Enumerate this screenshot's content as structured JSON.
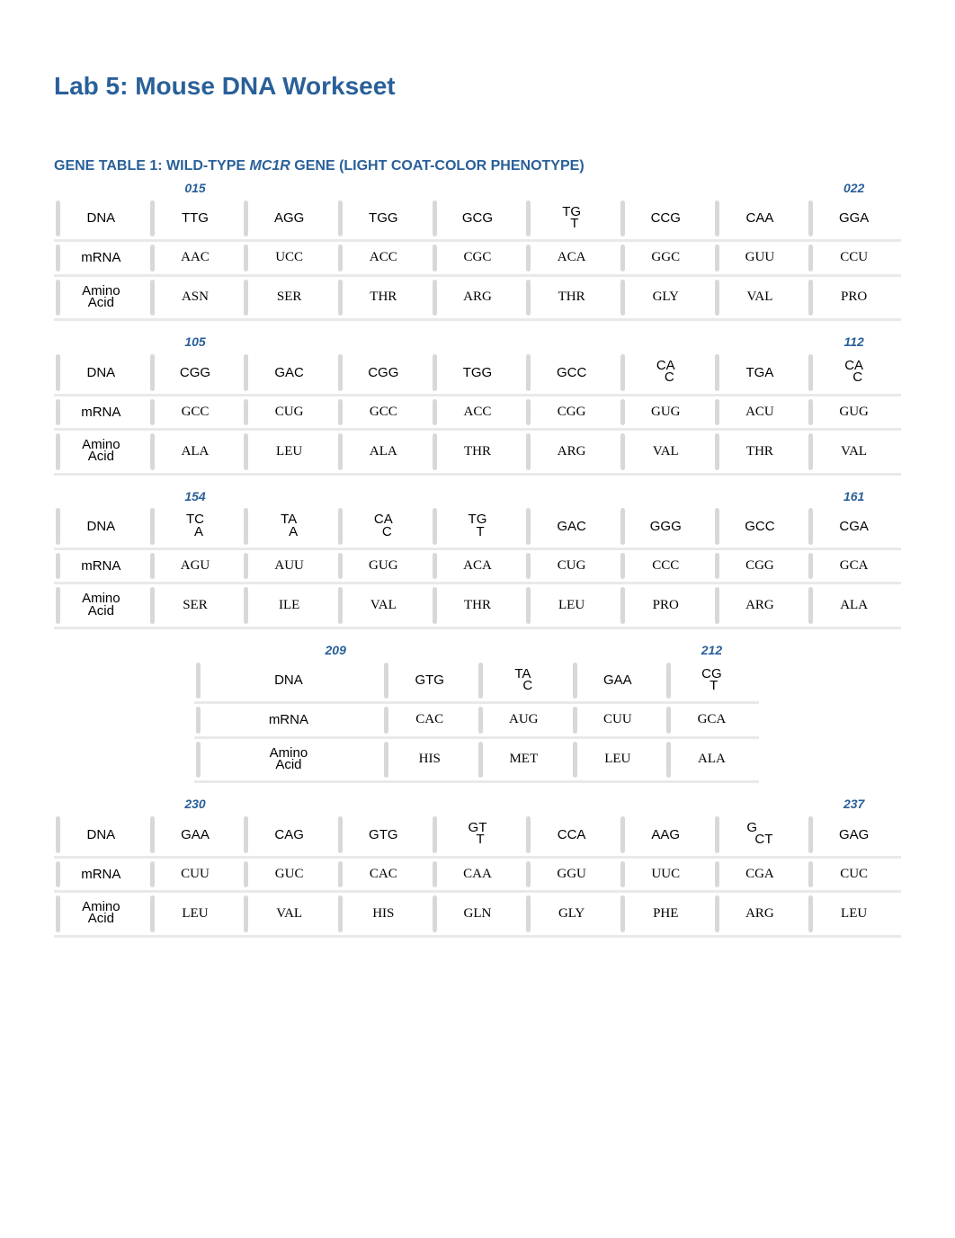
{
  "title": "Lab 5: Mouse DNA Workseet",
  "section_heading_pre": "GENE TABLE 1: WILD-TYPE ",
  "section_heading_gene": "MC1R",
  "section_heading_post": " GENE (LIGHT COAT-COLOR PHENOTYPE)",
  "row_labels": {
    "dna": "DNA",
    "mrna": "mRNA",
    "aa": "Amino\nAcid"
  },
  "colors": {
    "heading": "#2a6099",
    "row_divider": "#e9e9e9",
    "tick": "#d8d8d8",
    "background": "#ffffff"
  },
  "blocks": [
    {
      "cols": 9,
      "offset": false,
      "positions": [
        "",
        "015",
        "",
        "",
        "",
        "",
        "",
        "",
        "022"
      ],
      "dna": [
        "TTG",
        "AGG",
        "TGG",
        "GCG",
        "TG\nT",
        "CCG",
        "CAA",
        "GGA"
      ],
      "mrna": [
        "AAC",
        "UCC",
        "ACC",
        "CGC",
        "ACA",
        "GGC",
        "GUU",
        "CCU"
      ],
      "aa": [
        "ASN",
        "SER",
        "THR",
        "ARG",
        "THR",
        "GLY",
        "VAL",
        "PRO"
      ]
    },
    {
      "cols": 9,
      "offset": false,
      "positions": [
        "",
        "105",
        "",
        "",
        "",
        "",
        "",
        "",
        "112"
      ],
      "dna": [
        "CGG",
        "GAC",
        "CGG",
        "TGG",
        "GCC",
        "CA\nC",
        "TGA",
        "CA\nC"
      ],
      "mrna": [
        "GCC",
        "CUG",
        "GCC",
        "ACC",
        "CGG",
        "GUG",
        "ACU",
        "GUG"
      ],
      "aa": [
        "ALA",
        "LEU",
        "ALA",
        "THR",
        "ARG",
        "VAL",
        "THR",
        "VAL"
      ]
    },
    {
      "cols": 9,
      "offset": false,
      "positions": [
        "",
        "154",
        "",
        "",
        "",
        "",
        "",
        "",
        "161"
      ],
      "dna": [
        "TC\nA",
        "TA\nA",
        "CA\nC",
        "TG\nT",
        "GAC",
        "GGG",
        "GCC",
        "CGA"
      ],
      "mrna": [
        "AGU",
        "AUU",
        "GUG",
        "ACA",
        "CUG",
        "CCC",
        "CGG",
        "GCA"
      ],
      "aa": [
        "SER",
        "ILE",
        "VAL",
        "THR",
        "LEU",
        "PRO",
        "ARG",
        "ALA"
      ]
    },
    {
      "cols": 6,
      "offset": true,
      "positions": [
        "",
        "209",
        "",
        "",
        "",
        "212"
      ],
      "dna": [
        "GTG",
        "TA\nC",
        "GAA",
        "CG\nT"
      ],
      "mrna": [
        "CAC",
        "AUG",
        "CUU",
        "GCA"
      ],
      "aa": [
        "HIS",
        "MET",
        "LEU",
        "ALA"
      ]
    },
    {
      "cols": 9,
      "offset": false,
      "positions": [
        "",
        "230",
        "",
        "",
        "",
        "",
        "",
        "",
        "237"
      ],
      "dna": [
        "GAA",
        "CAG",
        "GTG",
        "GT\nT",
        "CCA",
        "AAG",
        "G\nCT",
        "GAG"
      ],
      "mrna": [
        "CUU",
        "GUC",
        "CAC",
        "CAA",
        "GGU",
        "UUC",
        "CGA",
        "CUC"
      ],
      "aa": [
        "LEU",
        "VAL",
        "HIS",
        "GLN",
        "GLY",
        "PHE",
        "ARG",
        "LEU"
      ]
    }
  ]
}
